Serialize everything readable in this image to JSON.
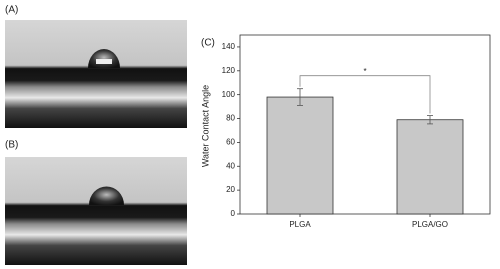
{
  "panels": {
    "a": "(A)",
    "b": "(B)"
  },
  "chart_data": {
    "type": "bar",
    "panel_label": "(C)",
    "y_label": "Water Contact Angle",
    "categories": [
      "PLGA",
      "PLGA/GO"
    ],
    "series": [
      {
        "color": "#c8c8c8",
        "values": [
          98,
          79
        ],
        "errors": [
          7,
          3.5
        ]
      }
    ],
    "ylim": [
      0,
      150
    ],
    "yticks": [
      0,
      20,
      40,
      60,
      80,
      100,
      120,
      140
    ],
    "annotation": "*"
  }
}
